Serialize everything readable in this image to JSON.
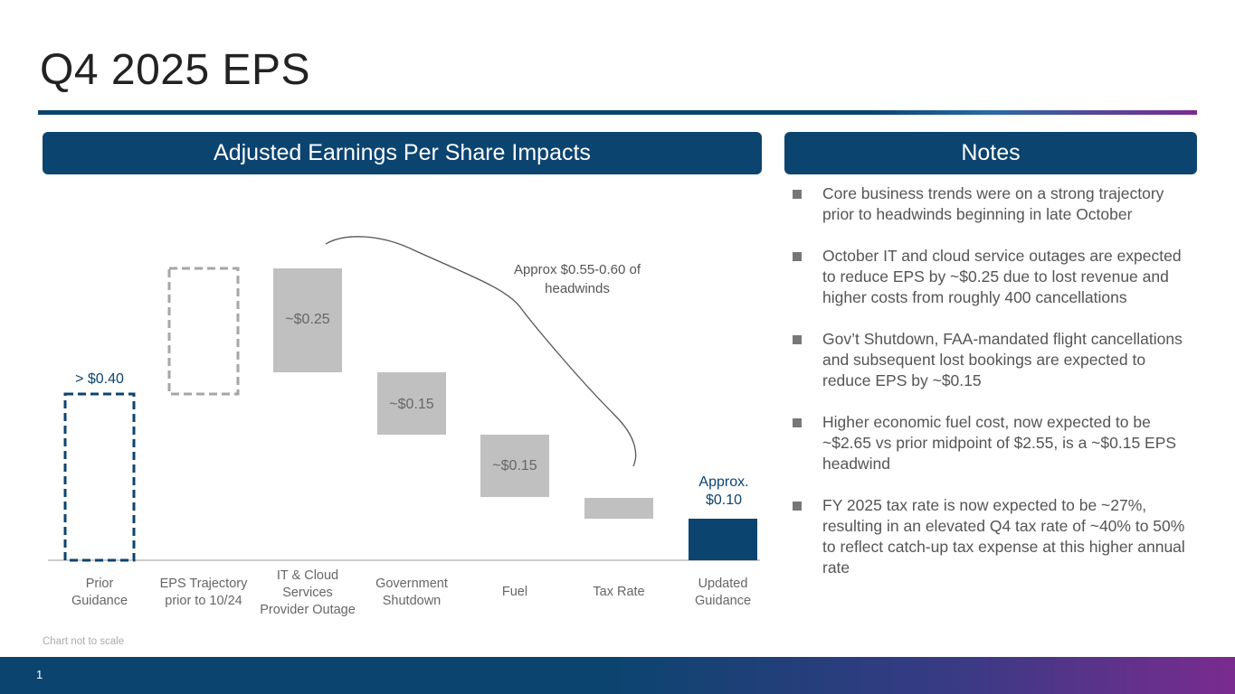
{
  "title": "Q4 2025 EPS",
  "headers": {
    "left": "Adjusted Earnings Per Share Impacts",
    "right": "Notes"
  },
  "chart_data": {
    "type": "bar",
    "subtype": "waterfall",
    "title": "Adjusted Earnings Per Share Impacts",
    "categories": [
      "Prior Guidance",
      "EPS Trajectory prior to 10/24",
      "IT & Cloud Services Provider Outage",
      "Government Shutdown",
      "Fuel",
      "Tax Rate",
      "Updated Guidance"
    ],
    "category_lines": [
      [
        "Prior",
        "Guidance"
      ],
      [
        "EPS Trajectory",
        "prior to 10/24"
      ],
      [
        "IT & Cloud",
        "Services",
        "Provider Outage"
      ],
      [
        "Government",
        "Shutdown"
      ],
      [
        "Fuel"
      ],
      [
        "Tax Rate"
      ],
      [
        "Updated",
        "Guidance"
      ]
    ],
    "values": [
      0.4,
      null,
      -0.25,
      -0.15,
      -0.15,
      null,
      0.1
    ],
    "data_labels": [
      "> $0.40",
      "",
      "~$0.25",
      "~$0.15",
      "~$0.15",
      "",
      "Approx. $0.10"
    ],
    "updated_label_lines": [
      "Approx.",
      "$0.10"
    ],
    "annotation": "Approx $0.55-0.60 of headwinds",
    "annotation_lines": [
      "Approx $0.55-0.60 of",
      "headwinds"
    ],
    "footnote": "Chart not to scale",
    "colors": {
      "guidance": "#0c4470",
      "trajectory": "#a6a6a6",
      "headwind": "#c0c0c0",
      "axis": "#999999"
    }
  },
  "notes": [
    "Core business trends were on a strong trajectory prior to headwinds beginning in late October",
    "October IT and cloud service outages are expected to reduce EPS by ~$0.25 due to lost revenue and higher costs from roughly 400 cancellations",
    "Gov’t Shutdown, FAA-mandated flight cancellations and subsequent lost bookings are expected to reduce EPS by ~$0.15",
    "Higher economic fuel cost, now expected to be ~$2.65 vs prior midpoint of $2.55, is a ~$0.15 EPS headwind",
    "FY 2025 tax rate is now expected to be ~27%, resulting in an elevated Q4 tax rate of ~40% to 50% to reflect catch-up tax expense at this higher annual rate"
  ],
  "page_number": "1"
}
